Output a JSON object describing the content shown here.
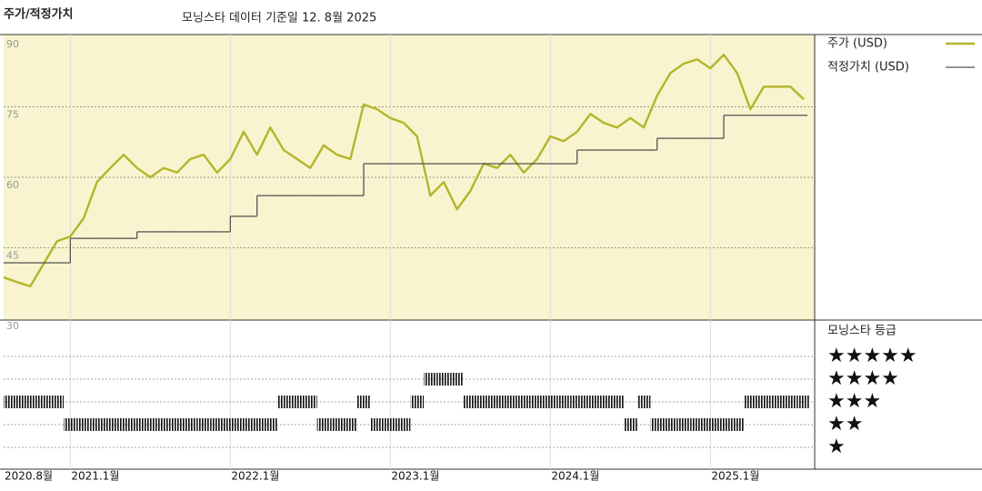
{
  "chart_data": {
    "type": "line",
    "title": "주가/적정가치",
    "subtitle": "모닝스타 데이터 기준일 12. 8월 2025",
    "x": [
      "2020-08",
      "2020-09",
      "2020-10",
      "2020-11",
      "2020-12",
      "2021-01",
      "2021-02",
      "2021-03",
      "2021-04",
      "2021-05",
      "2021-06",
      "2021-07",
      "2021-08",
      "2021-09",
      "2021-10",
      "2021-11",
      "2021-12",
      "2022-01",
      "2022-02",
      "2022-03",
      "2022-04",
      "2022-05",
      "2022-06",
      "2022-07",
      "2022-08",
      "2022-09",
      "2022-10",
      "2022-11",
      "2022-12",
      "2023-01",
      "2023-02",
      "2023-03",
      "2023-04",
      "2023-05",
      "2023-06",
      "2023-07",
      "2023-08",
      "2023-09",
      "2023-10",
      "2023-11",
      "2023-12",
      "2024-01",
      "2024-02",
      "2024-03",
      "2024-04",
      "2024-05",
      "2024-06",
      "2024-07",
      "2024-08",
      "2024-09",
      "2024-10",
      "2024-11",
      "2024-12",
      "2025-01",
      "2025-02",
      "2025-03",
      "2025-04",
      "2025-05",
      "2025-06",
      "2025-07",
      "2025-08"
    ],
    "series": [
      {
        "name": "주가 (USD)",
        "color": "#b3b52a",
        "values": [
          38.7,
          37.7,
          36.8,
          41.6,
          46.4,
          47.4,
          51.3,
          59,
          62,
          64.8,
          62,
          60,
          62,
          61,
          63.9,
          64.8,
          61,
          63.9,
          69.7,
          64.8,
          70.6,
          65.8,
          63.9,
          62,
          66.8,
          64.8,
          63.9,
          75.5,
          74.5,
          72.6,
          71.6,
          68.7,
          56.1,
          59,
          53.2,
          57.1,
          62.9,
          62,
          64.8,
          61,
          63.9,
          68.7,
          67.7,
          69.7,
          73.5,
          71.6,
          70.6,
          72.6,
          70.6,
          77.4,
          82.2,
          84.2,
          85.1,
          83.2,
          86.1,
          82.2,
          74.5,
          79.3,
          79.3,
          79.3,
          76.6
        ]
      },
      {
        "name": "적정가치 (USD)",
        "color": "#555555",
        "step": true,
        "values": [
          41.8,
          41.8,
          41.8,
          41.8,
          41.8,
          47,
          47,
          47,
          47,
          47,
          48.4,
          48.4,
          48.4,
          48.4,
          48.4,
          48.4,
          48.4,
          51.7,
          51.7,
          56.1,
          56.1,
          56.1,
          56.1,
          56.1,
          56.1,
          56.1,
          56.1,
          62.9,
          62.9,
          62.9,
          62.9,
          62.9,
          62.9,
          62.9,
          62.9,
          62.9,
          62.9,
          62.9,
          62.9,
          62.9,
          62.9,
          62.9,
          62.9,
          65.8,
          65.8,
          65.8,
          65.8,
          65.8,
          65.8,
          68.3,
          68.3,
          68.3,
          68.3,
          68.3,
          73.2,
          73.2,
          73.2,
          73.2,
          73.2,
          73.2,
          73.2
        ]
      }
    ],
    "ylim": [
      30,
      90
    ],
    "yticks": [
      90,
      75,
      60,
      45,
      30
    ],
    "grid": true,
    "xticks": [
      {
        "value": "2020-08",
        "label": "2020.8월"
      },
      {
        "value": "2021-01",
        "label": "2021.1월"
      },
      {
        "value": "2022-01",
        "label": "2022.1월"
      },
      {
        "value": "2023-01",
        "label": "2023.1월"
      },
      {
        "value": "2024-01",
        "label": "2024.1월"
      },
      {
        "value": "2025-01",
        "label": "2025.1월"
      }
    ],
    "rating": {
      "name": "모닝스타 등급",
      "levels": [
        {
          "value": 5,
          "label": "★★★★★"
        },
        {
          "value": 4,
          "label": "★★★★"
        },
        {
          "value": 3,
          "label": "★★★"
        },
        {
          "value": 2,
          "label": "★★"
        },
        {
          "value": 1,
          "label": "★"
        }
      ],
      "values": [
        3,
        3,
        3,
        3,
        3,
        2,
        2,
        2,
        2,
        2,
        2,
        2,
        2,
        2,
        2,
        2,
        2,
        2,
        2,
        2,
        2,
        3,
        3,
        3,
        2,
        2,
        2,
        3,
        2,
        2,
        2,
        3,
        4,
        4,
        4,
        3,
        3,
        3,
        3,
        3,
        3,
        3,
        3,
        3,
        3,
        3,
        3,
        2,
        3,
        2,
        2,
        2,
        2,
        2,
        2,
        2,
        3,
        3,
        3,
        3,
        3
      ]
    }
  }
}
